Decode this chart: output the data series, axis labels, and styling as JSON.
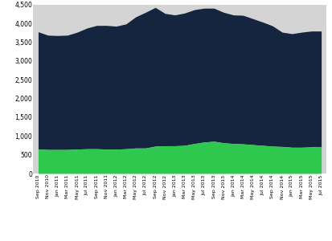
{
  "x_labels": [
    "Sep 2010",
    "Nov 2010",
    "Jan 2011",
    "Mar 2011",
    "May 2011",
    "Jul 2011",
    "Sep 2011",
    "Nov 2011",
    "Jan 2012",
    "Mar 2012",
    "May 2012",
    "Jul 2012",
    "Sep 2012",
    "Nov 2012",
    "Jan 2013",
    "Mar 2013",
    "May 2013",
    "Jul 2013",
    "Sep 2013",
    "Nov 2013",
    "Jan 2014",
    "Mar 2014",
    "May 2014",
    "Jul 2014",
    "Sep 2014",
    "Nov 2014",
    "Jan 2015",
    "Mar 2015",
    "May 2015",
    "Jul 2015"
  ],
  "commercial_land": [
    650,
    640,
    640,
    640,
    650,
    660,
    660,
    650,
    650,
    660,
    680,
    680,
    730,
    740,
    740,
    750,
    800,
    840,
    860,
    820,
    800,
    790,
    770,
    750,
    730,
    720,
    700,
    700,
    710,
    720
  ],
  "improved_commercial": [
    3130,
    3050,
    3040,
    3050,
    3120,
    3220,
    3290,
    3300,
    3280,
    3330,
    3500,
    3620,
    3700,
    3530,
    3490,
    3530,
    3570,
    3570,
    3550,
    3480,
    3430,
    3430,
    3360,
    3290,
    3210,
    3050,
    3030,
    3070,
    3090,
    3080
  ],
  "ylim": [
    0,
    4500
  ],
  "yticks": [
    0,
    500,
    1000,
    1500,
    2000,
    2500,
    3000,
    3500,
    4000,
    4500
  ],
  "color_land": "#2dc84d",
  "color_improved": "#152540",
  "color_background_area": "#d4d4d4",
  "color_fig_bg": "#ffffff",
  "tick_fontsize": 4.5,
  "legend_fontsize": 5.0,
  "ytick_fontsize": 5.5
}
